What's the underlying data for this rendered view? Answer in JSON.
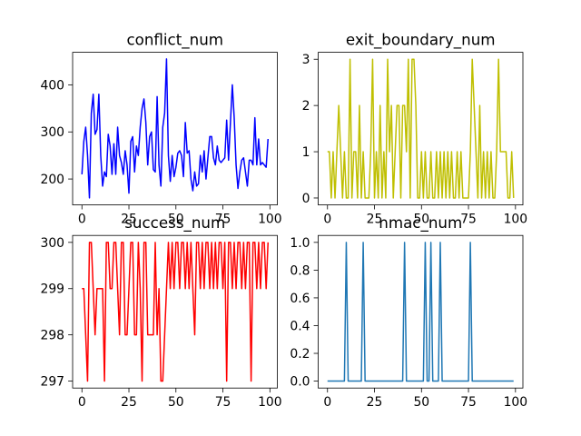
{
  "chart_data": [
    {
      "type": "line",
      "title": "conflict_num",
      "color": "#0000ff",
      "values": [
        210,
        280,
        310,
        250,
        160,
        340,
        380,
        295,
        305,
        380,
        250,
        185,
        215,
        205,
        295,
        270,
        210,
        275,
        210,
        310,
        250,
        235,
        210,
        260,
        230,
        170,
        280,
        290,
        215,
        270,
        250,
        310,
        350,
        370,
        320,
        230,
        290,
        300,
        220,
        215,
        375,
        230,
        185,
        310,
        340,
        455,
        250,
        195,
        250,
        205,
        225,
        255,
        260,
        250,
        205,
        320,
        255,
        260,
        200,
        175,
        215,
        185,
        190,
        250,
        215,
        260,
        200,
        245,
        290,
        290,
        245,
        230,
        270,
        240,
        235,
        240,
        245,
        325,
        240,
        320,
        400,
        330,
        230,
        180,
        215,
        240,
        245,
        215,
        185,
        240,
        240,
        230,
        330,
        230,
        285,
        230,
        235,
        230,
        225,
        285
      ],
      "xlim": [
        -4.95,
        103.95
      ],
      "xticks": [
        0,
        25,
        50,
        75,
        100
      ],
      "ylim": [
        145,
        469
      ],
      "yticks": [
        200,
        300,
        400
      ]
    },
    {
      "type": "line",
      "title": "exit_boundary_num",
      "color": "#bfbf00",
      "values": [
        1,
        1,
        0,
        1,
        0,
        1,
        2,
        1,
        0,
        1,
        0,
        0,
        3,
        0,
        1,
        1,
        0,
        2,
        0,
        1,
        0,
        0,
        0,
        1,
        3,
        0,
        1,
        0,
        2,
        0,
        1,
        0,
        3,
        1,
        2,
        0,
        1,
        2,
        2,
        0,
        2,
        2,
        1,
        3,
        0,
        3,
        3,
        2,
        0,
        0,
        1,
        0,
        1,
        0,
        0,
        1,
        0,
        0,
        1,
        0,
        1,
        0,
        1,
        0,
        1,
        0,
        1,
        0,
        0,
        1,
        0,
        1,
        0,
        0,
        0,
        0,
        1,
        3,
        2,
        1,
        0,
        2,
        0,
        1,
        0,
        1,
        0,
        1,
        0,
        0,
        1,
        3,
        1,
        1,
        1,
        1,
        0,
        0,
        1,
        0
      ],
      "xlim": [
        -4.95,
        103.95
      ],
      "xticks": [
        0,
        25,
        50,
        75,
        100
      ],
      "ylim": [
        -0.15,
        3.15
      ],
      "yticks": [
        0,
        1,
        2,
        3
      ]
    },
    {
      "type": "line",
      "title": "success_num",
      "color": "#ff0000",
      "values": [
        299,
        299,
        298,
        297,
        300,
        300,
        299,
        298,
        299,
        299,
        299,
        299,
        297,
        300,
        300,
        299,
        299,
        300,
        300,
        299,
        298,
        300,
        300,
        298,
        298,
        299,
        300,
        300,
        298,
        298,
        300,
        299,
        297,
        300,
        300,
        298,
        298,
        298,
        298,
        300,
        298,
        299,
        297,
        297,
        298,
        299,
        300,
        299,
        300,
        299,
        300,
        300,
        299,
        300,
        300,
        299,
        300,
        299,
        300,
        299,
        298,
        300,
        300,
        299,
        300,
        299,
        300,
        300,
        299,
        300,
        299,
        300,
        299,
        300,
        300,
        299,
        300,
        297,
        300,
        300,
        299,
        300,
        299,
        300,
        300,
        299,
        300,
        299,
        300,
        300,
        297,
        300,
        300,
        299,
        300,
        299,
        300,
        300,
        299,
        300
      ],
      "xlim": [
        -4.95,
        103.95
      ],
      "xticks": [
        0,
        25,
        50,
        75,
        100
      ],
      "ylim": [
        296.85,
        300.15
      ],
      "yticks": [
        297,
        298,
        299,
        300
      ]
    },
    {
      "type": "line",
      "title": "nmac_num",
      "color": "#1f77b4",
      "values": [
        0,
        0,
        0,
        0,
        0,
        0,
        0,
        0,
        0,
        0,
        1,
        0,
        0,
        0,
        0,
        0,
        0,
        0,
        0,
        1,
        0,
        0,
        0,
        0,
        0,
        0,
        0,
        0,
        0,
        0,
        0,
        0,
        0,
        0,
        0,
        0,
        0,
        0,
        0,
        0,
        0,
        1,
        0,
        0,
        0,
        0,
        0,
        0,
        0,
        0,
        0,
        0,
        1,
        0,
        0,
        1,
        0,
        0,
        0,
        0,
        1,
        0,
        0,
        0,
        0,
        0,
        0,
        0,
        0,
        0,
        0,
        0,
        0,
        0,
        0,
        0,
        1,
        0,
        0,
        0,
        0,
        0,
        0,
        0,
        0,
        0,
        0,
        0,
        0,
        0,
        0,
        0,
        0,
        0,
        0,
        0,
        0,
        0,
        0,
        0
      ],
      "xlim": [
        -4.95,
        103.95
      ],
      "xticks": [
        0,
        25,
        50,
        75,
        100
      ],
      "ylim": [
        -0.05,
        1.05
      ],
      "yticks": [
        {
          "value": 0,
          "label": "0.0"
        },
        {
          "value": 0.2,
          "label": "0.2"
        },
        {
          "value": 0.4,
          "label": "0.4"
        },
        {
          "value": 0.6,
          "label": "0.6"
        },
        {
          "value": 0.8,
          "label": "0.8"
        },
        {
          "value": 1,
          "label": "1.0"
        }
      ]
    }
  ]
}
